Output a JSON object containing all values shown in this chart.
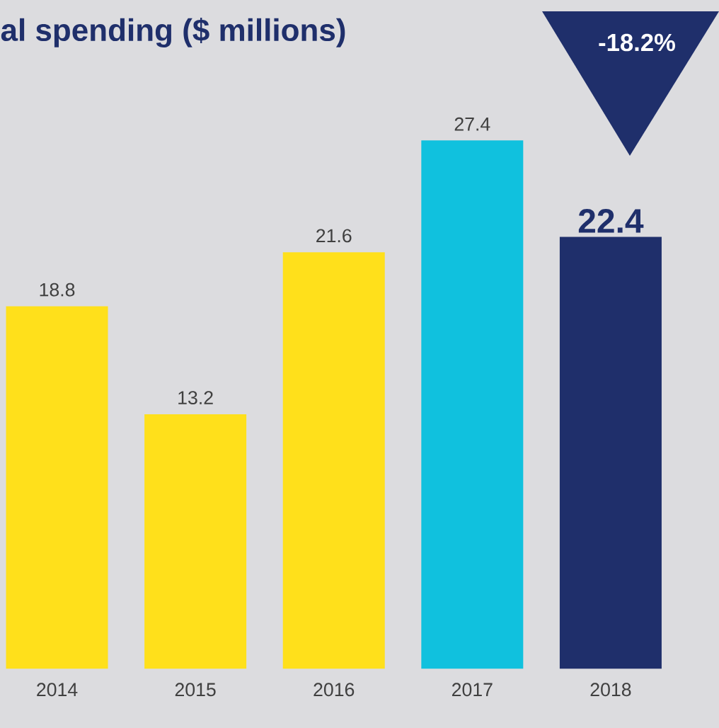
{
  "chart_data": {
    "type": "bar",
    "title": "al spending ($ millions)",
    "categories": [
      "2014",
      "2015",
      "2016",
      "2017",
      "2018"
    ],
    "values": [
      18.8,
      13.2,
      21.6,
      27.4,
      22.4
    ],
    "colors": [
      "#ffe01b",
      "#ffe01b",
      "#ffe01b",
      "#10c1de",
      "#1f2f6b"
    ],
    "data_labels": true,
    "annotations": [
      "-18.2%"
    ]
  }
}
